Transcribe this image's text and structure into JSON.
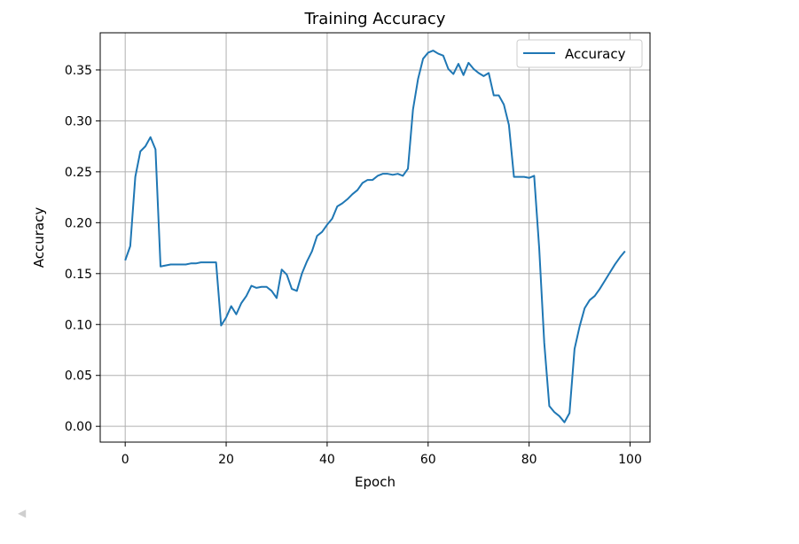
{
  "chart_data": {
    "type": "line",
    "title": "Training Accuracy",
    "xlabel": "Epoch",
    "ylabel": "Accuracy",
    "xlim": [
      -4.95,
      103.95
    ],
    "ylim": [
      -0.0155,
      0.3865
    ],
    "xticks": [
      0,
      20,
      40,
      60,
      80,
      100
    ],
    "yticks": [
      0.0,
      0.05,
      0.1,
      0.15,
      0.2,
      0.25,
      0.3,
      0.35
    ],
    "ytick_labels": [
      "0.00",
      "0.05",
      "0.10",
      "0.15",
      "0.20",
      "0.25",
      "0.30",
      "0.35"
    ],
    "grid": true,
    "legend_position": "upper-right",
    "series": [
      {
        "name": "Accuracy",
        "color": "#1f77b4",
        "x": [
          0,
          1,
          2,
          3,
          4,
          5,
          6,
          7,
          8,
          9,
          10,
          11,
          12,
          13,
          14,
          15,
          16,
          17,
          18,
          19,
          20,
          21,
          22,
          23,
          24,
          25,
          26,
          27,
          28,
          29,
          30,
          31,
          32,
          33,
          34,
          35,
          36,
          37,
          38,
          39,
          40,
          41,
          42,
          43,
          44,
          45,
          46,
          47,
          48,
          49,
          50,
          51,
          52,
          53,
          54,
          55,
          56,
          57,
          58,
          59,
          60,
          61,
          62,
          63,
          64,
          65,
          66,
          67,
          68,
          69,
          70,
          71,
          72,
          73,
          74,
          75,
          76,
          77,
          78,
          79,
          80,
          81,
          82,
          83,
          84,
          85,
          86,
          87,
          88,
          89,
          90,
          91,
          92,
          93,
          94,
          95,
          96,
          97,
          98,
          99
        ],
        "values": [
          0.163,
          0.177,
          0.245,
          0.27,
          0.275,
          0.284,
          0.272,
          0.157,
          0.158,
          0.159,
          0.159,
          0.159,
          0.159,
          0.16,
          0.16,
          0.161,
          0.161,
          0.161,
          0.161,
          0.099,
          0.107,
          0.118,
          0.11,
          0.121,
          0.128,
          0.138,
          0.136,
          0.137,
          0.137,
          0.133,
          0.126,
          0.154,
          0.149,
          0.135,
          0.133,
          0.15,
          0.162,
          0.172,
          0.187,
          0.191,
          0.198,
          0.204,
          0.216,
          0.219,
          0.223,
          0.228,
          0.232,
          0.239,
          0.242,
          0.242,
          0.246,
          0.248,
          0.248,
          0.247,
          0.248,
          0.246,
          0.253,
          0.311,
          0.341,
          0.361,
          0.367,
          0.369,
          0.366,
          0.364,
          0.351,
          0.346,
          0.356,
          0.345,
          0.357,
          0.351,
          0.347,
          0.344,
          0.347,
          0.325,
          0.325,
          0.316,
          0.296,
          0.245,
          0.245,
          0.245,
          0.244,
          0.246,
          0.175,
          0.082,
          0.02,
          0.014,
          0.01,
          0.004,
          0.013,
          0.076,
          0.098,
          0.116,
          0.124,
          0.128,
          0.135,
          0.143,
          0.151,
          0.159,
          0.166,
          0.172
        ]
      }
    ]
  }
}
